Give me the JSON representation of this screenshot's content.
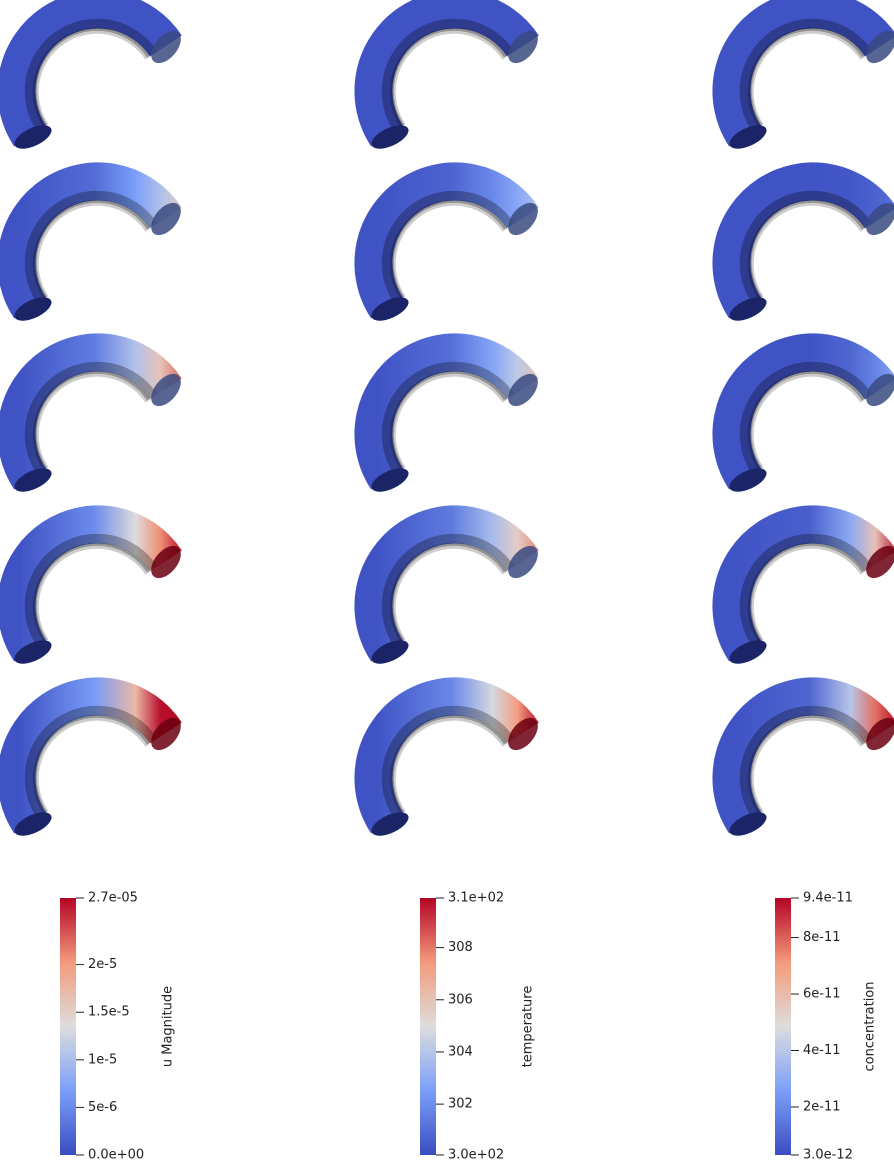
{
  "colorbars": [
    {
      "title": "u Magnitude",
      "range": [
        0,
        2.7e-05
      ],
      "ticks": [
        {
          "value": 0,
          "label": "0.0e+00"
        },
        {
          "value": 5e-06,
          "label": "5e-6"
        },
        {
          "value": 1e-05,
          "label": "1e-5"
        },
        {
          "value": 1.5e-05,
          "label": "1.5e-5"
        },
        {
          "value": 2e-05,
          "label": "2e-5"
        },
        {
          "value": 2.7e-05,
          "label": "2.7e-05"
        }
      ]
    },
    {
      "title": "temperature",
      "range": [
        300.05,
        309.9
      ],
      "ticks": [
        {
          "value": 300.05,
          "label": "3.0e+02"
        },
        302,
        304,
        306,
        308,
        {
          "value": 309.9,
          "label": "3.1e+02"
        }
      ]
    },
    {
      "title": "concentration",
      "range": [
        3e-12,
        9.4e-11
      ],
      "ticks": [
        {
          "value": 3e-12,
          "label": "3.0e-12"
        },
        {
          "value": 2e-11,
          "label": "2e-11"
        },
        {
          "value": 4e-11,
          "label": "4e-11"
        },
        {
          "value": 6e-11,
          "label": "6e-11"
        },
        {
          "value": 8e-11,
          "label": "8e-11"
        },
        {
          "value": 9.4e-11,
          "label": "9.4e-11"
        }
      ]
    }
  ]
}
